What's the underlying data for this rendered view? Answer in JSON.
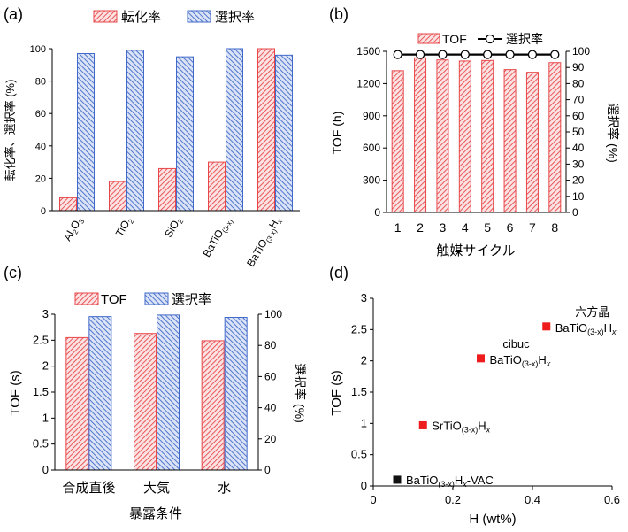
{
  "colors": {
    "red": "#e8474a",
    "red_bg": "#fbe3e3",
    "blue": "#4169c9",
    "blue_bg": "#dbe4f7",
    "point": "#ee1c1c",
    "black": "#111111"
  },
  "chart_data": [
    {
      "id": "a",
      "type": "bar",
      "panel_label": "(a)",
      "legend": [
        "転化率",
        "選択率"
      ],
      "ylabel": "転化率、選択率 (%)",
      "ylim": [
        0,
        100
      ],
      "yticks": [
        "0",
        "20",
        "40",
        "60",
        "80",
        "100"
      ],
      "categories": [
        {
          "main": "Al",
          "sub": "2",
          "main2": "O",
          "sub2": "3",
          "tail": ""
        },
        {
          "main": "TiO",
          "sub": "2",
          "main2": "",
          "sub2": "",
          "tail": ""
        },
        {
          "main": "SiO",
          "sub": "2",
          "main2": "",
          "sub2": "",
          "tail": ""
        },
        {
          "main": "BaTiO",
          "sub": "(3-x)",
          "main2": "",
          "sub2": "",
          "tail": ""
        },
        {
          "main": "BaTiO",
          "sub": "(3-x)",
          "main2": "H",
          "sub2": "x",
          "tail": ""
        }
      ],
      "series": [
        {
          "name": "転化率",
          "values": [
            8,
            18,
            26,
            30,
            100
          ]
        },
        {
          "name": "選択率",
          "values": [
            97,
            99,
            95,
            100,
            96
          ]
        }
      ]
    },
    {
      "id": "b",
      "type": "bar",
      "panel_label": "(b)",
      "legend": [
        "TOF",
        "選択率"
      ],
      "ylabel": "TOF (h)",
      "ylabel_right": "選択率 (%)",
      "xlabel": "触媒サイクル",
      "ylim": [
        0,
        1500
      ],
      "ylim_right": [
        0,
        100
      ],
      "yticks": [
        "0",
        "300",
        "600",
        "900",
        "1200",
        "1500"
      ],
      "yticks_right": [
        "0",
        "10",
        "20",
        "30",
        "40",
        "50",
        "60",
        "70",
        "80",
        "90",
        "100"
      ],
      "categories": [
        "1",
        "2",
        "3",
        "4",
        "5",
        "6",
        "7",
        "8"
      ],
      "series": [
        {
          "name": "TOF",
          "values": [
            1320,
            1440,
            1420,
            1410,
            1415,
            1330,
            1305,
            1395
          ]
        },
        {
          "name": "選択率",
          "values": [
            98,
            98,
            98,
            98,
            98,
            98,
            98,
            98
          ]
        }
      ]
    },
    {
      "id": "c",
      "type": "bar",
      "panel_label": "(c)",
      "legend": [
        "TOF",
        "選択率"
      ],
      "ylabel": "TOF (s)",
      "ylabel_right": "選択率 (%)",
      "xlabel": "暴露条件",
      "ylim": [
        0,
        3
      ],
      "ylim_right": [
        0,
        100
      ],
      "yticks": [
        "0",
        "0.5",
        "1",
        "1.5",
        "2",
        "2.5",
        "3"
      ],
      "yticks_right": [
        "0",
        "20",
        "40",
        "60",
        "80",
        "100"
      ],
      "categories": [
        "合成直後",
        "大気",
        "水"
      ],
      "series": [
        {
          "name": "TOF",
          "values": [
            2.55,
            2.63,
            2.49
          ]
        },
        {
          "name": "選択率",
          "values": [
            98.5,
            99.5,
            98
          ]
        }
      ]
    },
    {
      "id": "d",
      "type": "scatter",
      "panel_label": "(d)",
      "ylabel": "TOF (s)",
      "xlabel": "H (wt%)",
      "xlim": [
        0,
        0.6
      ],
      "ylim": [
        0,
        3
      ],
      "xticks": [
        "0",
        "0.2",
        "0.4",
        "0.6"
      ],
      "yticks": [
        "0",
        "0.5",
        "1",
        "1.5",
        "2",
        "2.5",
        "3"
      ],
      "points": [
        {
          "x": 0.06,
          "y": 0.1,
          "color": "black",
          "line1": "",
          "main": "BaTiO",
          "sub": "(3-x)",
          "main2": "H",
          "sub2": "x",
          "tail": "-VAC"
        },
        {
          "x": 0.125,
          "y": 0.97,
          "color": "red",
          "line1": "",
          "main": "SrTiO",
          "sub": "(3-x)",
          "main2": "H",
          "sub2": "x",
          "tail": ""
        },
        {
          "x": 0.27,
          "y": 2.04,
          "color": "red",
          "line1": "cibuc",
          "main": "BaTiO",
          "sub": "(3-x)",
          "main2": "H",
          "sub2": "x",
          "tail": ""
        },
        {
          "x": 0.435,
          "y": 2.55,
          "color": "red",
          "line1": "六方晶",
          "main": "BaTiO",
          "sub": "(3-x)",
          "main2": "H",
          "sub2": "x",
          "tail": ""
        }
      ]
    }
  ]
}
